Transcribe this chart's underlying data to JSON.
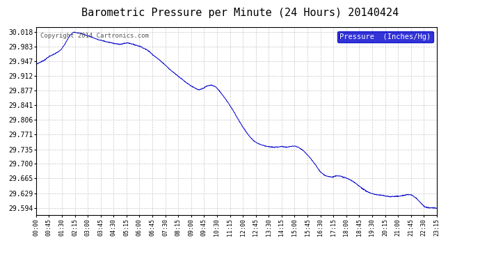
{
  "title": "Barometric Pressure per Minute (24 Hours) 20140424",
  "copyright_text": "Copyright 2014 Cartronics.com",
  "legend_label": "Pressure  (Inches/Hg)",
  "background_color": "#ffffff",
  "line_color": "#0000cc",
  "legend_bg_color": "#0000cc",
  "legend_text_color": "#ffffff",
  "grid_color": "#c8c8c8",
  "title_fontsize": 11,
  "ytick_labels": [
    30.018,
    29.983,
    29.947,
    29.912,
    29.877,
    29.841,
    29.806,
    29.771,
    29.735,
    29.7,
    29.665,
    29.629,
    29.594
  ],
  "ylim_min": 29.576,
  "ylim_max": 30.029,
  "xtick_labels": [
    "00:00",
    "00:45",
    "01:30",
    "02:15",
    "03:00",
    "03:45",
    "04:30",
    "05:15",
    "06:00",
    "06:45",
    "07:30",
    "08:15",
    "09:00",
    "09:45",
    "10:30",
    "11:15",
    "12:00",
    "12:45",
    "13:30",
    "14:15",
    "15:00",
    "15:45",
    "16:30",
    "17:15",
    "18:00",
    "18:45",
    "19:30",
    "20:15",
    "21:00",
    "21:45",
    "22:30",
    "23:15"
  ],
  "control_points": [
    [
      0.0,
      29.94
    ],
    [
      0.25,
      29.945
    ],
    [
      0.5,
      29.95
    ],
    [
      0.75,
      29.958
    ],
    [
      1.0,
      29.963
    ],
    [
      1.25,
      29.968
    ],
    [
      1.5,
      29.975
    ],
    [
      1.75,
      29.99
    ],
    [
      2.0,
      30.008
    ],
    [
      2.25,
      30.018
    ],
    [
      2.5,
      30.016
    ],
    [
      2.75,
      30.014
    ],
    [
      3.0,
      30.01
    ],
    [
      3.25,
      30.007
    ],
    [
      3.5,
      30.003
    ],
    [
      3.75,
      29.999
    ],
    [
      4.0,
      29.997
    ],
    [
      4.25,
      29.994
    ],
    [
      4.5,
      29.992
    ],
    [
      4.75,
      29.99
    ],
    [
      5.0,
      29.988
    ],
    [
      5.25,
      29.99
    ],
    [
      5.5,
      29.992
    ],
    [
      5.75,
      29.989
    ],
    [
      6.0,
      29.986
    ],
    [
      6.25,
      29.983
    ],
    [
      6.5,
      29.978
    ],
    [
      6.75,
      29.972
    ],
    [
      7.0,
      29.963
    ],
    [
      7.25,
      29.955
    ],
    [
      7.5,
      29.947
    ],
    [
      7.75,
      29.938
    ],
    [
      8.0,
      29.928
    ],
    [
      8.25,
      29.92
    ],
    [
      8.5,
      29.912
    ],
    [
      8.75,
      29.904
    ],
    [
      9.0,
      29.896
    ],
    [
      9.25,
      29.889
    ],
    [
      9.5,
      29.883
    ],
    [
      9.75,
      29.878
    ],
    [
      10.0,
      29.882
    ],
    [
      10.25,
      29.888
    ],
    [
      10.5,
      29.89
    ],
    [
      10.75,
      29.886
    ],
    [
      11.0,
      29.875
    ],
    [
      11.25,
      29.862
    ],
    [
      11.5,
      29.848
    ],
    [
      11.75,
      29.832
    ],
    [
      12.0,
      29.815
    ],
    [
      12.25,
      29.798
    ],
    [
      12.5,
      29.782
    ],
    [
      12.75,
      29.768
    ],
    [
      13.0,
      29.757
    ],
    [
      13.25,
      29.75
    ],
    [
      13.5,
      29.746
    ],
    [
      13.75,
      29.743
    ],
    [
      14.0,
      29.741
    ],
    [
      14.25,
      29.74
    ],
    [
      14.5,
      29.741
    ],
    [
      14.75,
      29.742
    ],
    [
      15.0,
      29.74
    ],
    [
      15.25,
      29.742
    ],
    [
      15.5,
      29.743
    ],
    [
      15.75,
      29.739
    ],
    [
      16.0,
      29.732
    ],
    [
      16.25,
      29.722
    ],
    [
      16.5,
      29.71
    ],
    [
      16.75,
      29.697
    ],
    [
      17.0,
      29.682
    ],
    [
      17.25,
      29.673
    ],
    [
      17.5,
      29.67
    ],
    [
      17.75,
      29.668
    ],
    [
      18.0,
      29.672
    ],
    [
      18.25,
      29.67
    ],
    [
      18.5,
      29.667
    ],
    [
      18.75,
      29.663
    ],
    [
      19.0,
      29.657
    ],
    [
      19.25,
      29.65
    ],
    [
      19.5,
      29.642
    ],
    [
      19.75,
      29.635
    ],
    [
      20.0,
      29.63
    ],
    [
      20.25,
      29.627
    ],
    [
      20.5,
      29.625
    ],
    [
      20.75,
      29.624
    ],
    [
      21.0,
      29.622
    ],
    [
      21.25,
      29.621
    ],
    [
      21.5,
      29.622
    ],
    [
      21.75,
      29.622
    ],
    [
      22.0,
      29.624
    ],
    [
      22.25,
      29.626
    ],
    [
      22.5,
      29.625
    ],
    [
      22.75,
      29.618
    ],
    [
      23.0,
      29.608
    ],
    [
      23.25,
      29.597
    ],
    [
      23.5,
      29.594
    ],
    [
      23.75,
      29.594
    ],
    [
      24.0,
      29.593
    ]
  ]
}
